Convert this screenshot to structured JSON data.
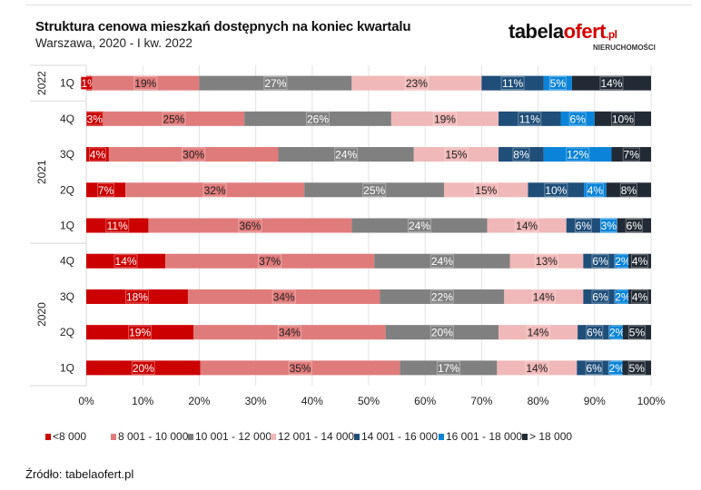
{
  "header": {
    "title": "Struktura cenowa mieszkań dostępnych na koniec kwartalu",
    "subtitle": "Warszawa, 2020 - I kw. 2022",
    "logo_text": "tabelaofert.pl",
    "logo_sub": "NIERUCHOMOŚCI"
  },
  "source": "Źródło: tabelaofert.pl",
  "chart_data": {
    "type": "bar",
    "orientation": "horizontal",
    "stacked": "100%",
    "title": "Struktura cenowa mieszkań dostępnych na koniec kwartalu",
    "subtitle": "Warszawa, 2020 - I kw. 2022",
    "year_groups": [
      {
        "year": "2022",
        "quarters": [
          "1Q"
        ]
      },
      {
        "year": "2021",
        "quarters": [
          "4Q",
          "3Q",
          "2Q",
          "1Q"
        ]
      },
      {
        "year": "2020",
        "quarters": [
          "4Q",
          "3Q",
          "2Q",
          "1Q"
        ]
      }
    ],
    "categories": [
      "2022 1Q",
      "2021 4Q",
      "2021 3Q",
      "2021 2Q",
      "2021 1Q",
      "2020 4Q",
      "2020 3Q",
      "2020 2Q",
      "2020 1Q"
    ],
    "series": [
      {
        "name": "<8 000",
        "color": "#cc0000",
        "label_color": "#ffffff",
        "values": [
          1,
          3,
          4,
          7,
          11,
          14,
          18,
          19,
          20
        ]
      },
      {
        "name": "8 001 - 10 000",
        "color": "#e07b7b",
        "label_color": "#222222",
        "values": [
          19,
          25,
          30,
          32,
          36,
          37,
          34,
          34,
          35
        ]
      },
      {
        "name": "10 001 - 12 000",
        "color": "#808080",
        "label_color": "#ffffff",
        "values": [
          27,
          26,
          24,
          25,
          24,
          24,
          22,
          20,
          17
        ]
      },
      {
        "name": "12 001 - 14 000",
        "color": "#f0b8b8",
        "label_color": "#222222",
        "values": [
          23,
          19,
          15,
          15,
          14,
          13,
          14,
          14,
          14
        ]
      },
      {
        "name": "14 001 - 16 000",
        "color": "#1f4e79",
        "label_color": "#ffffff",
        "values": [
          11,
          11,
          8,
          10,
          6,
          6,
          6,
          6,
          6
        ]
      },
      {
        "name": "16 001 - 18 000",
        "color": "#0a84d8",
        "label_color": "#ffffff",
        "values": [
          5,
          6,
          12,
          4,
          3,
          2,
          2,
          2,
          2
        ]
      },
      {
        "name": "> 18 000",
        "color": "#222a35",
        "label_color": "#ffffff",
        "values": [
          14,
          10,
          7,
          8,
          6,
          4,
          4,
          5,
          5
        ]
      }
    ],
    "xlim": [
      0,
      100
    ],
    "xticks": [
      "0%",
      "10%",
      "20%",
      "30%",
      "40%",
      "50%",
      "60%",
      "70%",
      "80%",
      "90%",
      "100%"
    ],
    "grid": "vertical",
    "legend": "bottom"
  }
}
